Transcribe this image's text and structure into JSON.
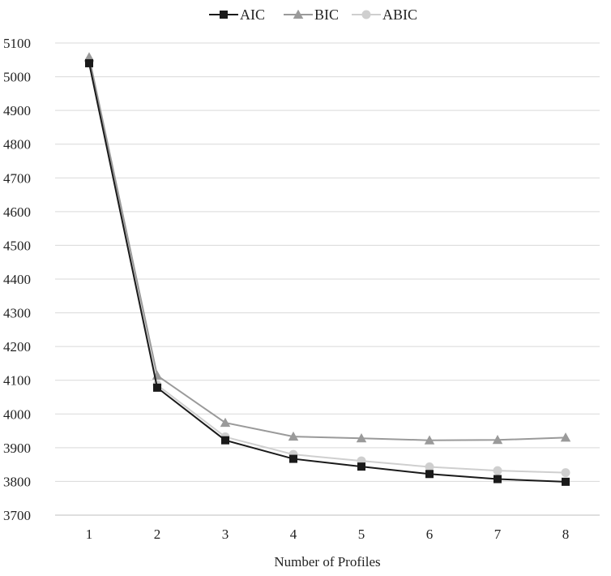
{
  "chart_data": {
    "type": "line",
    "title": "",
    "xlabel": "Number of Profiles",
    "ylabel": "",
    "x": [
      1,
      2,
      3,
      4,
      5,
      6,
      7,
      8
    ],
    "ylim": [
      3700,
      5100
    ],
    "yticks": [
      3700,
      3800,
      3900,
      4000,
      4100,
      4200,
      4300,
      4400,
      4500,
      4600,
      4700,
      4800,
      4900,
      5000,
      5100
    ],
    "grid": "horizontal",
    "legend_position": "top-center",
    "series": [
      {
        "name": "AIC",
        "color": "#1a1a1a",
        "marker": "square",
        "values": [
          5040,
          4078,
          3922,
          3867,
          3844,
          3822,
          3807,
          3799
        ]
      },
      {
        "name": "BIC",
        "color": "#9a9a9a",
        "marker": "triangle",
        "values": [
          5058,
          4114,
          3974,
          3933,
          3928,
          3922,
          3923,
          3930
        ]
      },
      {
        "name": "ABIC",
        "color": "#cfcfcf",
        "marker": "circle",
        "values": [
          5046,
          4086,
          3932,
          3880,
          3861,
          3843,
          3832,
          3826
        ]
      }
    ]
  }
}
